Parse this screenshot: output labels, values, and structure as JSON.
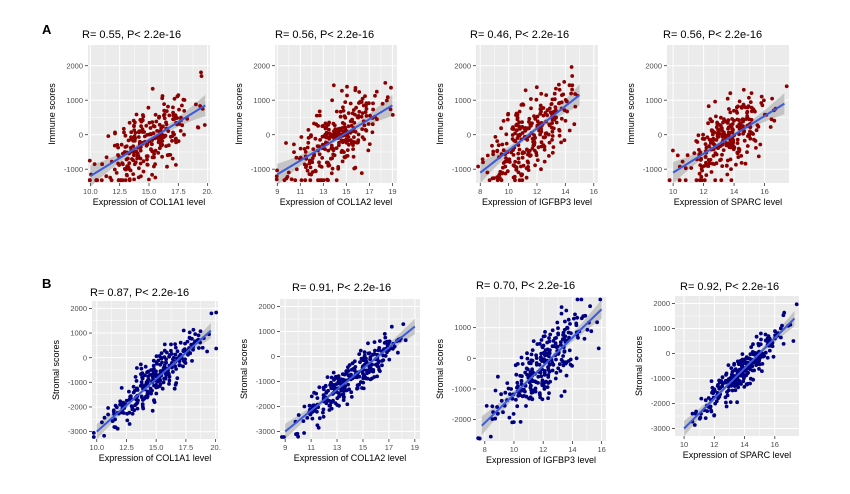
{
  "panels": [
    {
      "letter": "A",
      "row": "top"
    },
    {
      "letter": "B",
      "row": "bottom"
    }
  ],
  "colors": {
    "immune_point": "#8B0000",
    "stromal_point": "#000080",
    "fit_line": "#3B5BDB",
    "ci_band": "#BDBDBD",
    "panel_bg": "#EBEBEB",
    "grid": "#FFFFFF"
  },
  "chart_data": [
    {
      "type": "scatter",
      "title": "R= 0.55, P< 2.2e-16",
      "xlabel": "Expression of COL1A1 level",
      "ylabel": "Immune scores",
      "xlim": [
        9.8,
        20.2
      ],
      "ylim": [
        -1400,
        2600
      ],
      "xticks": [
        10.0,
        12.5,
        15.0,
        17.5,
        20.0
      ],
      "xtick_labels": [
        "10.0",
        "12.5",
        "15.0",
        "17.5",
        "20."
      ],
      "yticks": [
        -1000,
        0,
        1000,
        2000
      ],
      "ytick_labels": [
        "-1000",
        "0",
        "1000",
        "2000"
      ],
      "fit": {
        "x": [
          10.0,
          19.8
        ],
        "y": [
          -1200,
          850
        ]
      },
      "n_points": 270,
      "seed": 11,
      "noise": 520,
      "point_color": "immune_point"
    },
    {
      "type": "scatter",
      "title": "R= 0.56, P< 2.2e-16",
      "xlabel": "Expression of COL1A2 level",
      "ylabel": "Immune scores",
      "xlim": [
        8.8,
        19.4
      ],
      "ylim": [
        -1400,
        2600
      ],
      "xticks": [
        9,
        11,
        13,
        15,
        17,
        19
      ],
      "xtick_labels": [
        "9",
        "11",
        "13",
        "15",
        "17",
        "19"
      ],
      "yticks": [
        -1000,
        0,
        1000,
        2000
      ],
      "ytick_labels": [
        "-1000",
        "0",
        "1000",
        "2000"
      ],
      "fit": {
        "x": [
          9.0,
          19.0
        ],
        "y": [
          -1150,
          850
        ]
      },
      "n_points": 270,
      "seed": 23,
      "noise": 520,
      "point_color": "immune_point"
    },
    {
      "type": "scatter",
      "title": "R= 0.46, P< 2.2e-16",
      "xlabel": "Expression of IGFBP3 level",
      "ylabel": "Immune scores",
      "xlim": [
        7.7,
        16.3
      ],
      "ylim": [
        -1400,
        2600
      ],
      "xticks": [
        8,
        10,
        12,
        14,
        16
      ],
      "xtick_labels": [
        "8",
        "10",
        "12",
        "14",
        "16"
      ],
      "yticks": [
        -1000,
        0,
        1000,
        2000
      ],
      "ytick_labels": [
        "-1000",
        "0",
        "1000",
        "2000"
      ],
      "fit": {
        "x": [
          8.0,
          15.0
        ],
        "y": [
          -1100,
          1150
        ]
      },
      "n_points": 270,
      "seed": 37,
      "noise": 560,
      "point_color": "immune_point"
    },
    {
      "type": "scatter",
      "title": "R= 0.56, P< 2.2e-16",
      "xlabel": "Expression of SPARC level",
      "ylabel": "Immune scores",
      "xlim": [
        9.6,
        17.6
      ],
      "ylim": [
        -1400,
        2600
      ],
      "xticks": [
        10,
        12,
        14,
        16
      ],
      "xtick_labels": [
        "10",
        "12",
        "14",
        "16"
      ],
      "yticks": [
        -1000,
        0,
        1000,
        2000
      ],
      "ytick_labels": [
        "-1000",
        "0",
        "1000",
        "2000"
      ],
      "fit": {
        "x": [
          10.0,
          17.3
        ],
        "y": [
          -1100,
          900
        ]
      },
      "n_points": 270,
      "seed": 53,
      "noise": 520,
      "point_color": "immune_point"
    },
    {
      "type": "scatter",
      "title": "R= 0.87, P< 2.2e-16",
      "xlabel": "Expression of COL1A1 level",
      "ylabel": "Stromal scores",
      "xlim": [
        9.6,
        20.2
      ],
      "ylim": [
        -3300,
        2300
      ],
      "xticks": [
        10.0,
        12.5,
        15.0,
        17.5,
        20.0
      ],
      "xtick_labels": [
        "10.0",
        "12.5",
        "15.0",
        "17.5",
        "20."
      ],
      "yticks": [
        -3000,
        -2000,
        -1000,
        0,
        1000,
        2000
      ],
      "ytick_labels": [
        "-3000",
        "-2000",
        "-1000",
        "0",
        "1000",
        "2000"
      ],
      "fit": {
        "x": [
          10.0,
          19.6
        ],
        "y": [
          -3000,
          1100
        ]
      },
      "n_points": 270,
      "seed": 67,
      "noise": 430,
      "point_color": "stromal_point"
    },
    {
      "type": "scatter",
      "title": "R= 0.91, P< 2.2e-16",
      "xlabel": "Expression of COL1A2 level",
      "ylabel": "Stromal scores",
      "xlim": [
        8.6,
        19.4
      ],
      "ylim": [
        -3300,
        2300
      ],
      "xticks": [
        9,
        11,
        13,
        15,
        17,
        19
      ],
      "xtick_labels": [
        "9",
        "11",
        "13",
        "15",
        "17",
        "19"
      ],
      "yticks": [
        -3000,
        -2000,
        -1000,
        0,
        1000,
        2000
      ],
      "ytick_labels": [
        "-3000",
        "-2000",
        "-1000",
        "0",
        "1000",
        "2000"
      ],
      "fit": {
        "x": [
          9.0,
          19.0
        ],
        "y": [
          -3000,
          1200
        ]
      },
      "n_points": 270,
      "seed": 79,
      "noise": 380,
      "point_color": "stromal_point"
    },
    {
      "type": "scatter",
      "title": "R= 0.70, P< 2.2e-16",
      "xlabel": "Expression of IGFBP3 level",
      "ylabel": "Stromal scores",
      "xlim": [
        7.4,
        16.3
      ],
      "ylim": [
        -2700,
        2000
      ],
      "xticks": [
        8,
        10,
        12,
        14,
        16
      ],
      "xtick_labels": [
        "8",
        "10",
        "12",
        "14",
        "16"
      ],
      "yticks": [
        -2000,
        -1000,
        0,
        1000
      ],
      "ytick_labels": [
        "-2000",
        "-1000",
        "0",
        "1000"
      ],
      "fit": {
        "x": [
          7.8,
          16.0
        ],
        "y": [
          -2200,
          1600
        ]
      },
      "n_points": 270,
      "seed": 83,
      "noise": 560,
      "point_color": "stromal_point"
    },
    {
      "type": "scatter",
      "title": "R= 0.92, P< 2.2e-16",
      "xlabel": "Expression of SPARC level",
      "ylabel": "Stromal scores",
      "xlim": [
        9.4,
        17.6
      ],
      "ylim": [
        -3300,
        2300
      ],
      "xticks": [
        10,
        12,
        14,
        16
      ],
      "xtick_labels": [
        "10",
        "12",
        "14",
        "16"
      ],
      "yticks": [
        -3000,
        -2000,
        -1000,
        0,
        1000,
        2000
      ],
      "ytick_labels": [
        "-3000",
        "-2000",
        "-1000",
        "0",
        "1000",
        "2000"
      ],
      "fit": {
        "x": [
          10.0,
          17.3
        ],
        "y": [
          -3000,
          1400
        ]
      },
      "n_points": 270,
      "seed": 97,
      "noise": 360,
      "point_color": "stromal_point"
    }
  ]
}
